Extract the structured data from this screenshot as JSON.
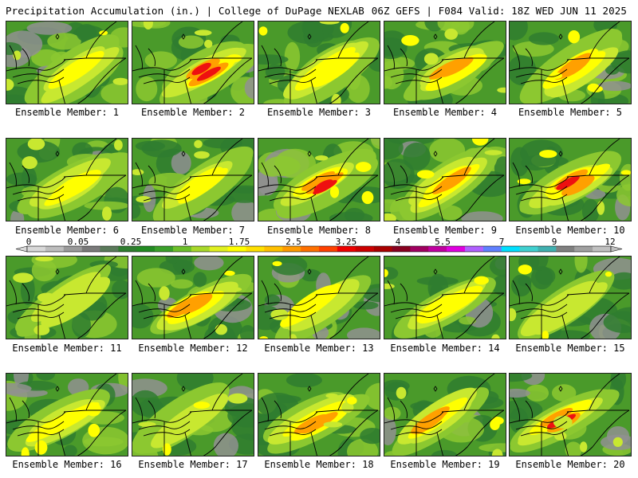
{
  "header": {
    "left_title": "Precipitation Accumulation (in.) | College of DuPage NEXLAB",
    "right_title": "06Z GEFS | F084 Valid: 18Z WED JUN 11 2025"
  },
  "members": [
    {
      "label": "Ensemble Member: 1",
      "max_level": 2
    },
    {
      "label": "Ensemble Member: 2",
      "max_level": 4
    },
    {
      "label": "Ensemble Member: 3",
      "max_level": 2
    },
    {
      "label": "Ensemble Member: 4",
      "max_level": 3
    },
    {
      "label": "Ensemble Member: 5",
      "max_level": 3
    },
    {
      "label": "Ensemble Member: 6",
      "max_level": 2
    },
    {
      "label": "Ensemble Member: 7",
      "max_level": 2
    },
    {
      "label": "Ensemble Member: 8",
      "max_level": 4
    },
    {
      "label": "Ensemble Member: 9",
      "max_level": 3
    },
    {
      "label": "Ensemble Member: 10",
      "max_level": 4
    },
    {
      "label": "Ensemble Member: 11",
      "max_level": 1
    },
    {
      "label": "Ensemble Member: 12",
      "max_level": 3
    },
    {
      "label": "Ensemble Member: 13",
      "max_level": 2
    },
    {
      "label": "Ensemble Member: 14",
      "max_level": 2
    },
    {
      "label": "Ensemble Member: 15",
      "max_level": 1
    },
    {
      "label": "Ensemble Member: 16",
      "max_level": 2
    },
    {
      "label": "Ensemble Member: 17",
      "max_level": 1
    },
    {
      "label": "Ensemble Member: 18",
      "max_level": 3
    },
    {
      "label": "Ensemble Member: 19",
      "max_level": 3
    },
    {
      "label": "Ensemble Member: 20",
      "max_level": 4
    }
  ],
  "colorbar": {
    "labels": [
      "0",
      "0.05",
      "0.25",
      "1",
      "1.75",
      "2.5",
      "3.25",
      "4",
      "5.5",
      "7",
      "9",
      "12"
    ],
    "colors": [
      "#d8d8d8",
      "#bdbdbd",
      "#9a9a9a",
      "#7a7a7a",
      "#5a7a5a",
      "#2f7d2f",
      "#228b22",
      "#3aa02a",
      "#6cc02a",
      "#a8d82a",
      "#e0f020",
      "#ffff00",
      "#ffe000",
      "#ffc000",
      "#ff9a00",
      "#ff7000",
      "#ff4000",
      "#ee0000",
      "#cc0000",
      "#aa0000",
      "#880020",
      "#a00060",
      "#c000a0",
      "#e000e0",
      "#b060ff",
      "#6080ff",
      "#00e0ff",
      "#40d0d0",
      "#40b0b0",
      "#808080",
      "#a0a0a0",
      "#c0c0c0"
    ]
  },
  "palette": {
    "dark_green": "#2f7d2f",
    "mid_green": "#4a9a2a",
    "light_green": "#8cc830",
    "yellow_green": "#c8e830",
    "yellow": "#ffff00",
    "orange": "#ffa000",
    "red": "#ee1010",
    "gray": "#909090"
  }
}
